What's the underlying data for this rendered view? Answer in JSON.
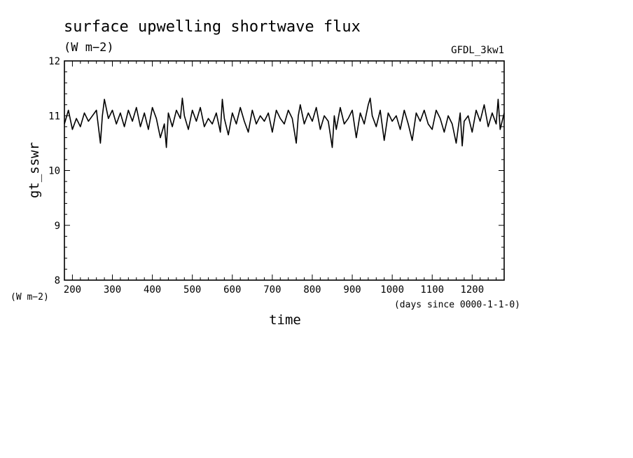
{
  "chart_data": {
    "type": "line",
    "title": "surface upwelling shortwave flux",
    "subtitle": "(W m−2)",
    "model_label": "GFDL_3kw1",
    "xlabel": "time",
    "x_units": "(days since 0000-1-1-0)",
    "ylabel": "gt_sswr",
    "y_units": "(W m−2)",
    "xlim": [
      180,
      1280
    ],
    "ylim": [
      8,
      12
    ],
    "x_ticks": [
      200,
      300,
      400,
      500,
      600,
      700,
      800,
      900,
      1000,
      1100,
      1200
    ],
    "y_ticks": [
      8,
      9,
      10,
      11,
      12
    ],
    "grid": false,
    "series": [
      {
        "color": "#000000",
        "x": [
          180,
          190,
          200,
          210,
          220,
          230,
          240,
          250,
          260,
          270,
          275,
          280,
          290,
          300,
          310,
          320,
          330,
          340,
          350,
          360,
          370,
          380,
          390,
          400,
          410,
          420,
          430,
          435,
          440,
          450,
          460,
          470,
          475,
          480,
          490,
          500,
          510,
          520,
          530,
          540,
          550,
          560,
          570,
          575,
          580,
          590,
          600,
          610,
          620,
          630,
          640,
          650,
          660,
          670,
          680,
          690,
          700,
          710,
          720,
          730,
          740,
          750,
          760,
          765,
          770,
          780,
          790,
          800,
          810,
          820,
          830,
          840,
          850,
          855,
          860,
          870,
          880,
          890,
          900,
          910,
          920,
          930,
          940,
          945,
          950,
          960,
          970,
          980,
          990,
          1000,
          1010,
          1020,
          1030,
          1040,
          1050,
          1060,
          1070,
          1080,
          1090,
          1100,
          1110,
          1120,
          1130,
          1140,
          1150,
          1160,
          1170,
          1175,
          1180,
          1190,
          1200,
          1210,
          1220,
          1230,
          1240,
          1250,
          1260,
          1265,
          1270,
          1280
        ],
        "y": [
          10.85,
          11.1,
          10.75,
          10.95,
          10.8,
          11.05,
          10.9,
          11.0,
          11.1,
          10.5,
          11.0,
          11.3,
          10.95,
          11.1,
          10.85,
          11.05,
          10.8,
          11.1,
          10.9,
          11.15,
          10.8,
          11.05,
          10.75,
          11.15,
          10.95,
          10.6,
          10.85,
          10.42,
          11.05,
          10.8,
          11.1,
          10.95,
          11.32,
          11.0,
          10.75,
          11.1,
          10.9,
          11.15,
          10.8,
          10.95,
          10.85,
          11.05,
          10.7,
          11.3,
          10.95,
          10.65,
          11.05,
          10.85,
          11.15,
          10.9,
          10.7,
          11.1,
          10.85,
          11.0,
          10.9,
          11.05,
          10.7,
          11.1,
          10.95,
          10.85,
          11.1,
          10.95,
          10.5,
          11.0,
          11.2,
          10.85,
          11.05,
          10.9,
          11.15,
          10.75,
          11.0,
          10.9,
          10.42,
          11.0,
          10.75,
          11.15,
          10.85,
          10.95,
          11.1,
          10.6,
          11.05,
          10.85,
          11.2,
          11.32,
          11.0,
          10.8,
          11.1,
          10.55,
          11.05,
          10.9,
          11.0,
          10.75,
          11.1,
          10.85,
          10.55,
          11.05,
          10.9,
          11.1,
          10.85,
          10.75,
          11.1,
          10.95,
          10.7,
          11.0,
          10.85,
          10.5,
          11.05,
          10.45,
          10.9,
          11.0,
          10.7,
          11.1,
          10.9,
          11.2,
          10.8,
          11.05,
          10.85,
          11.3,
          10.75,
          11.05
        ]
      }
    ]
  }
}
